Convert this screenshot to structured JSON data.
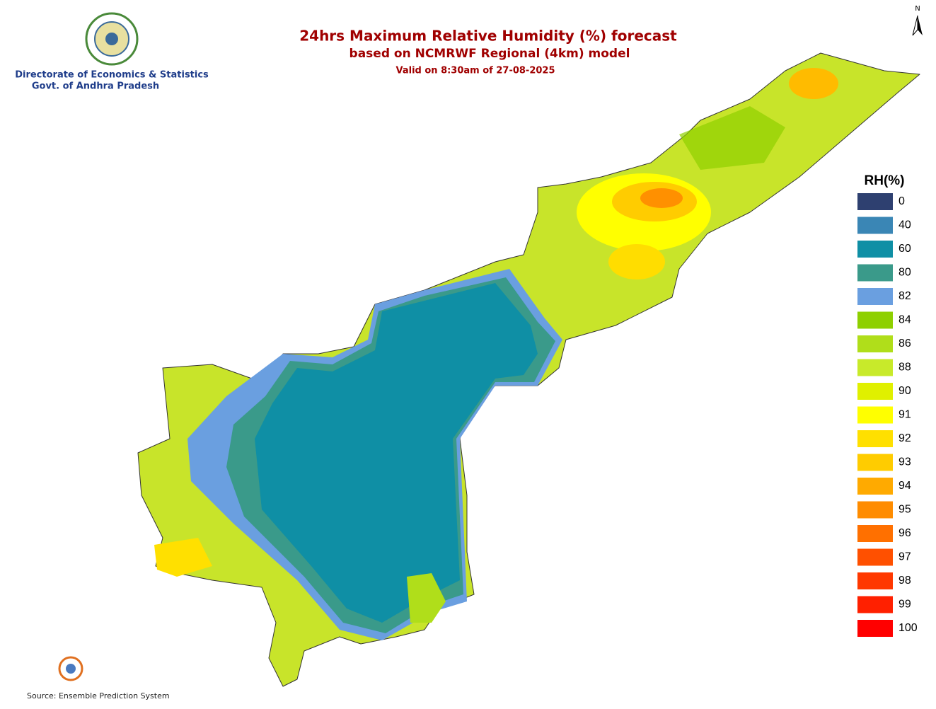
{
  "header": {
    "title": "24hrs Maximum Relative Humidity (%) forecast",
    "subtitle": "based on NCMRWF Regional (4km) model",
    "valid": "Valid on 8:30am of 27-08-2025"
  },
  "organization": {
    "line1": "Directorate of Economics & Statistics",
    "line2": "Govt. of Andhra Pradesh"
  },
  "north": "N",
  "legend": {
    "title": "RH(%)",
    "items": [
      {
        "value": 0,
        "color": "#2e4070"
      },
      {
        "value": 40,
        "color": "#3a86b5"
      },
      {
        "value": 60,
        "color": "#0f8fa5"
      },
      {
        "value": 80,
        "color": "#3a9a8a"
      },
      {
        "value": 82,
        "color": "#6a9fe0"
      },
      {
        "value": 84,
        "color": "#8ed000"
      },
      {
        "value": 86,
        "color": "#b0de1a"
      },
      {
        "value": 88,
        "color": "#c8ea2a"
      },
      {
        "value": 90,
        "color": "#e0f000"
      },
      {
        "value": 91,
        "color": "#ffff00"
      },
      {
        "value": 92,
        "color": "#ffe000"
      },
      {
        "value": 93,
        "color": "#ffcc00"
      },
      {
        "value": 94,
        "color": "#ffaa00"
      },
      {
        "value": 95,
        "color": "#ff8c00"
      },
      {
        "value": 96,
        "color": "#ff7000"
      },
      {
        "value": 97,
        "color": "#ff5000"
      },
      {
        "value": 98,
        "color": "#ff3800"
      },
      {
        "value": 99,
        "color": "#ff2000"
      },
      {
        "value": 100,
        "color": "#ff0000"
      }
    ]
  },
  "source": "Source: Ensemble Prediction System"
}
